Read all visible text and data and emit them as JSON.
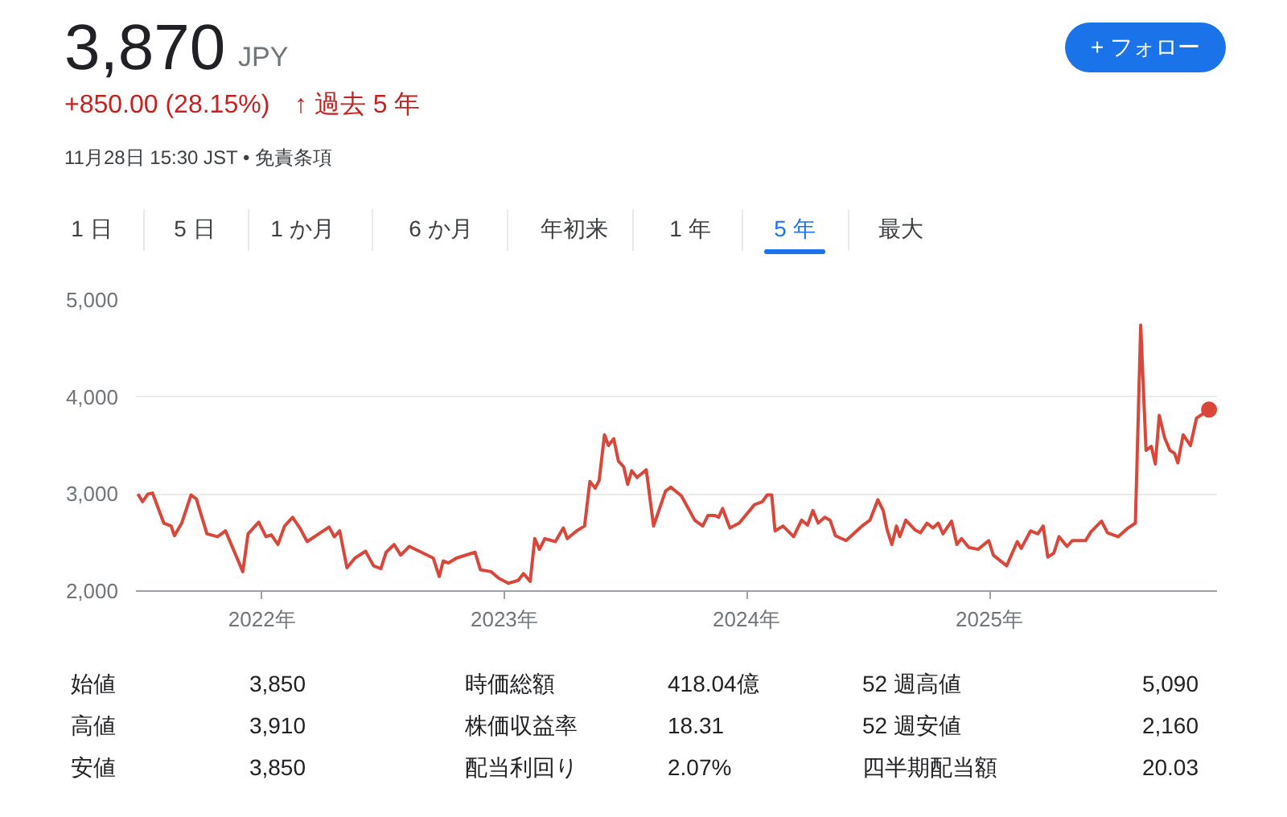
{
  "chart_data": {
    "type": "line",
    "title": "3,870",
    "annotations": [
      "JPY",
      "+850.00 (28.15%)",
      "↑ 過去 5 年",
      "11月28日 15:30 JST • 免責条項",
      "+ フォロー",
      "1 日",
      "5 日",
      "1 か月",
      "6 か月",
      "年初来",
      "1 年",
      "5 年",
      "最大",
      "始値",
      "3,850",
      "時価総額",
      "418.04億",
      "52 週高値",
      "5,090",
      "高値",
      "3,910",
      "株価収益率",
      "18.31",
      "52 週安値",
      "2,160",
      "安値",
      "3,850",
      "配当利回り",
      "2.07%",
      "四半期配当額",
      "20.03"
    ],
    "xlim": [
      "2021-06-25",
      "2025-12-10"
    ],
    "xticks": [
      {
        "value": "2022-01-01",
        "label": "2022年"
      },
      {
        "value": "2023-01-01",
        "label": "2023年"
      },
      {
        "value": "2024-01-01",
        "label": "2024年"
      },
      {
        "value": "2025-01-01",
        "label": "2025年"
      }
    ],
    "ylim": [
      2000,
      5000
    ],
    "yticks": [
      {
        "value": 2000,
        "label": "2,000"
      },
      {
        "value": 3000,
        "label": "3,000"
      },
      {
        "value": 4000,
        "label": "4,000"
      },
      {
        "value": 5000,
        "label": "5,000"
      }
    ],
    "grid": "y",
    "marker": "none",
    "line_style": "solid",
    "series": [
      {
        "color": "#d9473b",
        "x": [
          "2021-06-28",
          "2021-07-05",
          "2021-07-13",
          "2021-07-20",
          "2021-08-06",
          "2021-08-17",
          "2021-08-22",
          "2021-09-02",
          "2021-09-16",
          "2021-09-24",
          "2021-10-10",
          "2021-10-26",
          "2021-11-07",
          "2021-12-03",
          "2021-12-11",
          "2021-12-27",
          "2022-01-07",
          "2022-01-15",
          "2022-01-25",
          "2022-02-04",
          "2022-02-16",
          "2022-02-27",
          "2022-03-10",
          "2022-04-12",
          "2022-04-20",
          "2022-04-28",
          "2022-05-09",
          "2022-05-21",
          "2022-06-06",
          "2022-06-18",
          "2022-06-29",
          "2022-07-07",
          "2022-07-19",
          "2022-07-29",
          "2022-08-11",
          "2022-09-16",
          "2022-09-25",
          "2022-10-01",
          "2022-10-09",
          "2022-10-21",
          "2022-11-18",
          "2022-11-26",
          "2022-12-12",
          "2022-12-24",
          "2023-01-07",
          "2023-01-22",
          "2023-01-30",
          "2023-02-09",
          "2023-02-16",
          "2023-02-23",
          "2023-03-03",
          "2023-03-19",
          "2023-03-31",
          "2023-04-06",
          "2023-04-20",
          "2023-05-02",
          "2023-05-10",
          "2023-05-18",
          "2023-05-24",
          "2023-06-01",
          "2023-06-07",
          "2023-06-15",
          "2023-06-22",
          "2023-06-30",
          "2023-07-06",
          "2023-07-12",
          "2023-07-20",
          "2023-08-03",
          "2023-08-14",
          "2023-09-01",
          "2023-09-09",
          "2023-09-25",
          "2023-10-15",
          "2023-10-27",
          "2023-11-04",
          "2023-11-14",
          "2023-11-20",
          "2023-11-26",
          "2023-12-07",
          "2023-12-21",
          "2024-01-13",
          "2024-01-25",
          "2024-02-01",
          "2024-02-08",
          "2024-02-13",
          "2024-02-25",
          "2024-03-12",
          "2024-03-24",
          "2024-04-02",
          "2024-04-10",
          "2024-04-18",
          "2024-04-28",
          "2024-05-06",
          "2024-05-14",
          "2024-05-30",
          "2024-06-23",
          "2024-07-05",
          "2024-07-17",
          "2024-07-25",
          "2024-07-31",
          "2024-08-07",
          "2024-08-14",
          "2024-08-19",
          "2024-08-28",
          "2024-09-11",
          "2024-09-19",
          "2024-09-29",
          "2024-10-08",
          "2024-10-16",
          "2024-10-23",
          "2024-11-05",
          "2024-11-13",
          "2024-11-20",
          "2024-12-01",
          "2024-12-15",
          "2024-12-31",
          "2025-01-07",
          "2025-01-27",
          "2025-02-12",
          "2025-02-18",
          "2025-03-04",
          "2025-03-15",
          "2025-03-23",
          "2025-03-30",
          "2025-04-08",
          "2025-04-16",
          "2025-04-28",
          "2025-05-06",
          "2025-05-26",
          "2025-06-03",
          "2025-06-19",
          "2025-06-28",
          "2025-07-14",
          "2025-07-29",
          "2025-08-09",
          "2025-08-17",
          "2025-08-25",
          "2025-09-02",
          "2025-09-08",
          "2025-09-14",
          "2025-09-22",
          "2025-09-30",
          "2025-10-07",
          "2025-10-12",
          "2025-10-20",
          "2025-10-31",
          "2025-11-09",
          "2025-11-28"
        ],
        "values": [
          3000,
          2920,
          3000,
          3010,
          2700,
          2670,
          2570,
          2700,
          2990,
          2950,
          2590,
          2560,
          2620,
          2200,
          2590,
          2710,
          2560,
          2580,
          2480,
          2670,
          2760,
          2650,
          2510,
          2660,
          2560,
          2620,
          2240,
          2340,
          2410,
          2260,
          2230,
          2400,
          2480,
          2370,
          2460,
          2340,
          2150,
          2310,
          2290,
          2340,
          2400,
          2220,
          2200,
          2130,
          2080,
          2110,
          2180,
          2100,
          2540,
          2430,
          2540,
          2510,
          2650,
          2540,
          2620,
          2670,
          3130,
          3060,
          3140,
          3610,
          3500,
          3570,
          3340,
          3280,
          3100,
          3240,
          3170,
          3250,
          2670,
          3030,
          3070,
          2980,
          2730,
          2670,
          2780,
          2780,
          2760,
          2850,
          2650,
          2700,
          2890,
          2920,
          2990,
          2990,
          2620,
          2670,
          2560,
          2730,
          2680,
          2830,
          2700,
          2760,
          2730,
          2570,
          2520,
          2670,
          2730,
          2940,
          2830,
          2630,
          2480,
          2670,
          2560,
          2730,
          2630,
          2600,
          2700,
          2650,
          2700,
          2590,
          2720,
          2480,
          2540,
          2450,
          2430,
          2520,
          2370,
          2260,
          2510,
          2440,
          2620,
          2590,
          2670,
          2350,
          2390,
          2560,
          2460,
          2520,
          2520,
          2610,
          2720,
          2600,
          2560,
          2650,
          2700,
          4740,
          3450,
          3490,
          3310,
          3810,
          3580,
          3450,
          3420,
          3320,
          3610,
          3500,
          3780,
          3870
        ]
      },
      {
        "type": "scatter",
        "marker": "circle",
        "color": "#d9473b",
        "x": [
          "2025-11-28"
        ],
        "values": [
          3870
        ]
      }
    ]
  }
}
